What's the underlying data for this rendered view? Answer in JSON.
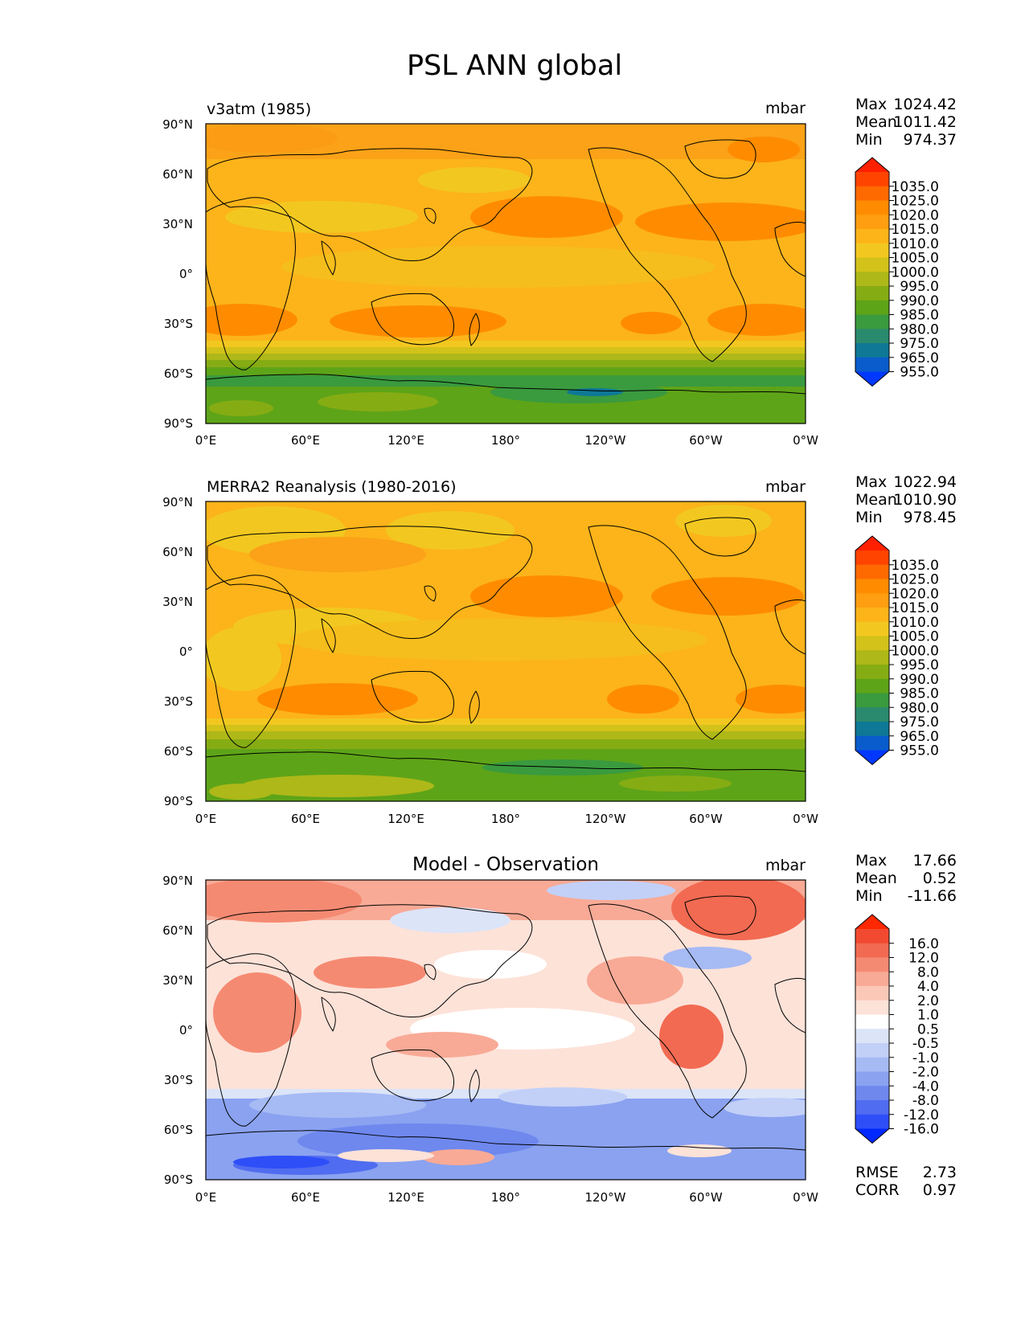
{
  "figure": {
    "title": "PSL ANN global",
    "x_ticks": [
      "0°E",
      "60°E",
      "120°E",
      "180°",
      "120°W",
      "60°W",
      "0°W"
    ],
    "y_ticks": [
      "90°N",
      "60°N",
      "30°N",
      "0°",
      "30°S",
      "60°S",
      "90°S"
    ]
  },
  "chart_data": [
    {
      "type": "heatmap",
      "title": "v3atm (1985)",
      "units": "mbar",
      "stats": {
        "max_label": "Max",
        "max": "1024.42",
        "mean_label": "Mean",
        "mean": "1011.42",
        "min_label": "Min",
        "min": "974.37"
      },
      "colorbar": {
        "levels": [
          "1035.0",
          "1025.0",
          "1020.0",
          "1015.0",
          "1010.0",
          "1005.0",
          "1000.0",
          "995.0",
          "990.0",
          "985.0",
          "980.0",
          "975.0",
          "965.0",
          "955.0"
        ],
        "colors": [
          "#ff2000",
          "#ff4400",
          "#ff6a00",
          "#ff8c00",
          "#ff9e10",
          "#fcb418",
          "#f2c820",
          "#d2c21a",
          "#aeb818",
          "#86ac14",
          "#5ea418",
          "#3a9a3e",
          "#2a8a6e",
          "#0e7896",
          "#0a5ccc",
          "#0038ff"
        ]
      },
      "xlim": [
        0,
        360
      ],
      "ylim": [
        -90,
        90
      ]
    },
    {
      "type": "heatmap",
      "title": "MERRA2 Reanalysis (1980-2016)",
      "units": "mbar",
      "stats": {
        "max_label": "Max",
        "max": "1022.94",
        "mean_label": "Mean",
        "mean": "1010.90",
        "min_label": "Min",
        "min": "978.45"
      },
      "colorbar": {
        "levels": [
          "1035.0",
          "1025.0",
          "1020.0",
          "1015.0",
          "1010.0",
          "1005.0",
          "1000.0",
          "995.0",
          "990.0",
          "985.0",
          "980.0",
          "975.0",
          "965.0",
          "955.0"
        ],
        "colors": [
          "#ff2000",
          "#ff4400",
          "#ff6a00",
          "#ff8c00",
          "#ff9e10",
          "#fcb418",
          "#f2c820",
          "#d2c21a",
          "#aeb818",
          "#86ac14",
          "#5ea418",
          "#3a9a3e",
          "#2a8a6e",
          "#0e7896",
          "#0a5ccc",
          "#0038ff"
        ]
      },
      "xlim": [
        0,
        360
      ],
      "ylim": [
        -90,
        90
      ]
    },
    {
      "type": "heatmap",
      "title": "Model - Observation",
      "units": "mbar",
      "stats": {
        "max_label": "Max",
        "max": "17.66",
        "mean_label": "Mean",
        "mean": "0.52",
        "min_label": "Min",
        "min": "-11.66"
      },
      "rmse_label": "RMSE",
      "rmse": "2.73",
      "corr_label": "CORR",
      "corr": "0.97",
      "colorbar": {
        "levels": [
          "16.0",
          "12.0",
          "8.0",
          "4.0",
          "2.0",
          "1.0",
          "0.5",
          "-0.5",
          "-1.0",
          "-2.0",
          "-4.0",
          "-8.0",
          "-12.0",
          "-16.0"
        ],
        "colors": [
          "#ff2800",
          "#f24a30",
          "#f26a52",
          "#f58a72",
          "#f8aa96",
          "#fbc8b8",
          "#fde2d8",
          "#ffffff",
          "#dce4f8",
          "#c2d0f8",
          "#a6baf4",
          "#8aa2f0",
          "#6e88ee",
          "#506cf0",
          "#2e4ef8",
          "#0028ff"
        ]
      },
      "xlim": [
        0,
        360
      ],
      "ylim": [
        -90,
        90
      ]
    }
  ]
}
